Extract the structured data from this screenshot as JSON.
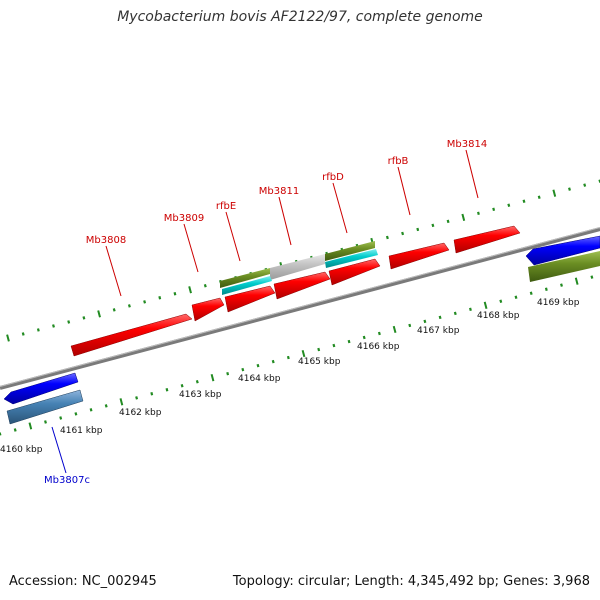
{
  "title": "Mycobacterium bovis AF2122/97, complete genome",
  "footer": {
    "accession": "Accession: NC_002945",
    "summary": "Topology: circular; Length: 4,345,492 bp; Genes: 3,968"
  },
  "colors": {
    "cds_forward": "#ff0000",
    "cds_reverse": "#0000ff",
    "trna_or_other_green": "#6b8e23",
    "cyan_feature": "#00c8c8",
    "steelblue_feature": "#4682b4",
    "grey_feature": "#c0c0c0",
    "backbone": "#808080",
    "tick": "#228b22",
    "label_forward": "#cc0000",
    "label_reverse": "#0000cc"
  },
  "axis": {
    "unit": "kbp",
    "ticks": [
      {
        "label": "4160 kbp"
      },
      {
        "label": "4161 kbp"
      },
      {
        "label": "4162 kbp"
      },
      {
        "label": "4163 kbp"
      },
      {
        "label": "4164 kbp"
      },
      {
        "label": "4165 kbp"
      },
      {
        "label": "4166 kbp"
      },
      {
        "label": "4167 kbp"
      },
      {
        "label": "4168 kbp"
      },
      {
        "label": "4169 kbp"
      }
    ]
  },
  "gene_labels": {
    "forward": [
      "Mb3808",
      "Mb3809",
      "rfbE",
      "Mb3811",
      "rfbD",
      "rfbB",
      "Mb3814"
    ],
    "reverse": [
      "Mb3807c"
    ]
  }
}
